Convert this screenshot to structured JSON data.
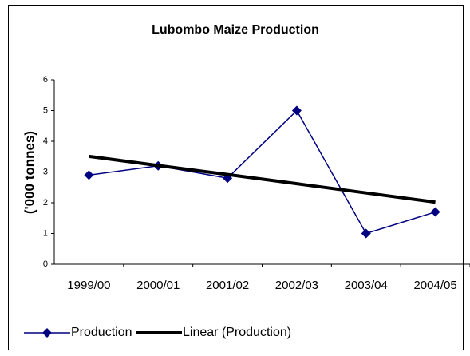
{
  "chart_data": {
    "type": "line",
    "title": "Lubombo Maize Production",
    "y_label": "('000 tonnes)",
    "categories": [
      "1999/00",
      "2000/01",
      "2001/02",
      "2002/03",
      "2003/04",
      "2004/05"
    ],
    "series": [
      {
        "name": "Production",
        "color": "#000080",
        "marker": "diamond",
        "values": [
          2.9,
          3.2,
          2.8,
          5.0,
          1.0,
          1.7
        ]
      },
      {
        "name": "Linear (Production)",
        "color": "#000000",
        "values": [
          3.51,
          3.21,
          2.92,
          2.62,
          2.32,
          2.02
        ]
      }
    ],
    "ylim": [
      0,
      6
    ],
    "yticks": [
      0,
      1,
      2,
      3,
      4,
      5,
      6
    ],
    "grid": false,
    "legend": "bottom"
  }
}
